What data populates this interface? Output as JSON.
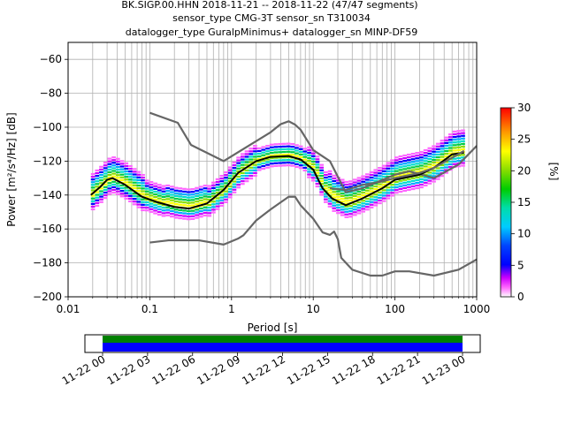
{
  "header": {
    "line1": "BK.SIGP.00.HHN   2018-11-21 -- 2018-11-22  (47/47 segments)",
    "line2": "sensor_type CMG-3T sensor_sn T310034",
    "line3": "datalogger_type GuralpMinimus+ datalogger_sn MINP-DF59"
  },
  "colorbar": {
    "label": "[%]",
    "ticks": [
      "0",
      "5",
      "10",
      "15",
      "20",
      "25",
      "30"
    ],
    "range": [
      0,
      30
    ]
  },
  "timeline": {
    "ticks": [
      "11-22 00",
      "11-22 03",
      "11-22 06",
      "11-22 09",
      "11-22 12",
      "11-22 15",
      "11-22 18",
      "11-22 21",
      "11-23 00"
    ]
  },
  "chart_data": {
    "type": "heatmap",
    "xlabel": "Period [s]",
    "ylabel": "Power [m²/s⁴/Hz] [dB]",
    "xscale": "log",
    "xlim": [
      0.01,
      1000
    ],
    "ylim": [
      -200,
      -50
    ],
    "xticks": [
      "0.01",
      "0.1",
      "1",
      "10",
      "100",
      "1000"
    ],
    "yticks": [
      "-200",
      "-180",
      "-160",
      "-140",
      "-120",
      "-100",
      "-80",
      "-60"
    ],
    "grid": true,
    "colormap": "pqlx",
    "series": [
      {
        "role": "high-noise-model",
        "color": "#666666",
        "points": [
          [
            0.1,
            -91.5
          ],
          [
            0.22,
            -97.4
          ],
          [
            0.32,
            -110.5
          ],
          [
            0.8,
            -120
          ],
          [
            3,
            -103
          ],
          [
            4,
            -98.2
          ],
          [
            5,
            -96.5
          ],
          [
            6,
            -98.5
          ],
          [
            7,
            -101.5
          ],
          [
            10,
            -113.5
          ],
          [
            16,
            -120
          ],
          [
            25,
            -138.4
          ],
          [
            40,
            -136
          ],
          [
            100,
            -128
          ],
          [
            150,
            -126
          ],
          [
            300,
            -130
          ],
          [
            600,
            -122
          ],
          [
            1000,
            -111
          ]
        ]
      },
      {
        "role": "low-noise-model",
        "color": "#666666",
        "points": [
          [
            0.1,
            -168
          ],
          [
            0.17,
            -166.7
          ],
          [
            0.4,
            -166.7
          ],
          [
            0.8,
            -169.2
          ],
          [
            1.2,
            -165.7
          ],
          [
            1.4,
            -163.7
          ],
          [
            2,
            -155
          ],
          [
            3,
            -148.5
          ],
          [
            5,
            -141
          ],
          [
            6,
            -141
          ],
          [
            7,
            -146
          ],
          [
            10,
            -154
          ],
          [
            13,
            -162
          ],
          [
            16,
            -163.5
          ],
          [
            18,
            -161.5
          ],
          [
            20,
            -166
          ],
          [
            22,
            -177
          ],
          [
            30,
            -184
          ],
          [
            50,
            -187.5
          ],
          [
            70,
            -187.5
          ],
          [
            100,
            -185
          ],
          [
            150,
            -185
          ],
          [
            300,
            -187.5
          ],
          [
            600,
            -184
          ],
          [
            1000,
            -178
          ]
        ]
      },
      {
        "role": "mode",
        "color": "#000000",
        "points": [
          [
            0.019,
            -140
          ],
          [
            0.025,
            -135
          ],
          [
            0.03,
            -131
          ],
          [
            0.035,
            -130
          ],
          [
            0.05,
            -134
          ],
          [
            0.08,
            -141
          ],
          [
            0.12,
            -144
          ],
          [
            0.2,
            -147
          ],
          [
            0.3,
            -148
          ],
          [
            0.5,
            -145
          ],
          [
            0.8,
            -137
          ],
          [
            1.2,
            -127
          ],
          [
            2,
            -120
          ],
          [
            3,
            -117.5
          ],
          [
            5,
            -117
          ],
          [
            7,
            -119
          ],
          [
            10,
            -125
          ],
          [
            13,
            -136
          ],
          [
            17,
            -142
          ],
          [
            25,
            -146
          ],
          [
            40,
            -142
          ],
          [
            70,
            -136
          ],
          [
            100,
            -131
          ],
          [
            200,
            -128
          ],
          [
            300,
            -124
          ],
          [
            500,
            -116
          ],
          [
            700,
            -115
          ]
        ]
      },
      {
        "role": "secondary-line",
        "color": "#666666",
        "points": [
          [
            16,
            -136
          ],
          [
            25,
            -137
          ],
          [
            40,
            -134
          ],
          [
            70,
            -132
          ],
          [
            100,
            -130
          ],
          [
            200,
            -127
          ],
          [
            300,
            -124
          ],
          [
            500,
            -118
          ],
          [
            700,
            -114
          ]
        ]
      }
    ]
  }
}
